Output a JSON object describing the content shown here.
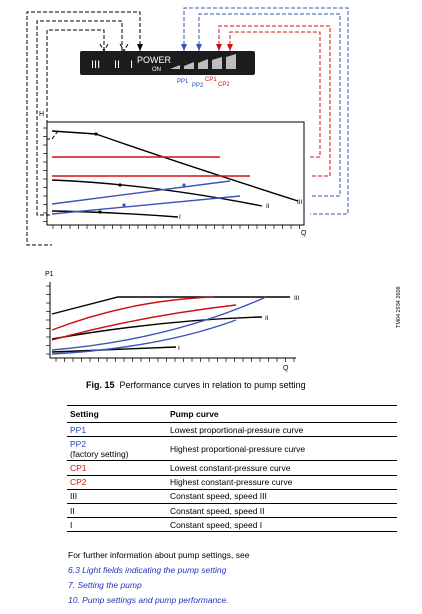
{
  "diagram": {
    "panel": {
      "power_label": "POWER",
      "on_label": "ON",
      "roman_three": "III",
      "roman_two": "II",
      "roman_one": "I",
      "tags": [
        {
          "text": "PP1",
          "color": "#1f3fbf"
        },
        {
          "text": "PP2",
          "color": "#1f3fbf"
        },
        {
          "text": "CP1",
          "color": "#d01010"
        },
        {
          "text": "CP2",
          "color": "#d01010"
        }
      ]
    },
    "top_chart": {
      "y_axis_label": "H",
      "x_axis_label": "Q",
      "curve_labels": [
        "III",
        "II",
        "I"
      ]
    },
    "bottom_chart": {
      "y_axis_label": "P1",
      "x_axis_label": "Q",
      "curve_labels": [
        "III",
        "II",
        "I"
      ]
    },
    "colors": {
      "proportional": "#3a54b8",
      "constant": "#d01010",
      "speed": "#000000"
    }
  },
  "caption": {
    "label": "Fig. 15",
    "text": "Performance curves in relation to pump setting"
  },
  "side_code": "TM04 2934 2608",
  "table": {
    "headers": [
      "Setting",
      "Pump curve"
    ],
    "rows": [
      {
        "setting": "PP1",
        "setting_note": "",
        "curve": "Lowest proportional-pressure curve",
        "color": "#1f3fbf"
      },
      {
        "setting": "PP2",
        "setting_note": "(factory setting)",
        "curve": "Highest proportional-pressure curve",
        "color": "#1f3fbf"
      },
      {
        "setting": "CP1",
        "setting_note": "",
        "curve": "Lowest constant-pressure curve",
        "color": "#d01010"
      },
      {
        "setting": "CP2",
        "setting_note": "",
        "curve": "Highest constant-pressure curve",
        "color": "#d01010"
      },
      {
        "setting": "III",
        "setting_note": "",
        "curve": "Constant speed, speed III",
        "color": "#000000"
      },
      {
        "setting": "II",
        "setting_note": "",
        "curve": "Constant speed, speed II",
        "color": "#000000"
      },
      {
        "setting": "I",
        "setting_note": "",
        "curve": "Constant speed, speed I",
        "color": "#000000"
      }
    ]
  },
  "further": "For further information about pump settings, see",
  "links": [
    "6.3 Light fields indicating the pump setting",
    "7. Setting the pump",
    "10. Pump settings and pump performance."
  ]
}
